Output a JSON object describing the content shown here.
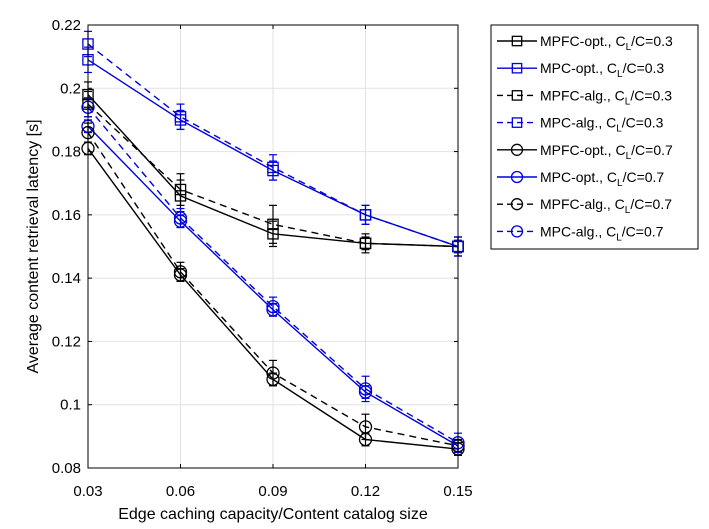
{
  "chart_data": {
    "type": "line",
    "xlabel": "Edge caching capacity/Content catalog size",
    "ylabel": "Average content retrieval latency [s]",
    "xlim": [
      0.03,
      0.15
    ],
    "ylim": [
      0.08,
      0.22
    ],
    "x_ticks": [
      "0.03",
      "0.06",
      "0.09",
      "0.12",
      "0.15"
    ],
    "y_ticks": [
      "0.08",
      "0.1",
      "0.12",
      "0.14",
      "0.16",
      "0.18",
      "0.2",
      "0.22"
    ],
    "grid": true,
    "legend_position": "outside-right-top",
    "colors": {
      "black": "#000000",
      "blue": "#0000e0",
      "grid": "#e2e2e2"
    },
    "x": [
      0.03,
      0.06,
      0.09,
      0.12,
      0.15
    ],
    "series": [
      {
        "label": "MPFC-opt., C",
        "sub": "L",
        "suffix": "/C=0.3",
        "color": "black",
        "dash": false,
        "marker": "square",
        "values": [
          0.198,
          0.166,
          0.154,
          0.151,
          0.15
        ],
        "err": [
          0.004,
          0.005,
          0.004,
          0.002,
          0.003
        ]
      },
      {
        "label": "MPC-opt., C",
        "sub": "L",
        "suffix": "/C=0.3",
        "color": "blue",
        "dash": false,
        "marker": "square",
        "values": [
          0.209,
          0.19,
          0.174,
          0.16,
          0.15
        ],
        "err": [
          0.004,
          0.003,
          0.003,
          0.003,
          0.002
        ]
      },
      {
        "label": "MPFC-alg., C",
        "sub": "L",
        "suffix": "/C=0.3",
        "color": "black",
        "dash": true,
        "marker": "square",
        "values": [
          0.195,
          0.168,
          0.157,
          0.151,
          0.15
        ],
        "err": [
          0.004,
          0.005,
          0.006,
          0.003,
          0.003
        ]
      },
      {
        "label": "MPC-alg., C",
        "sub": "L",
        "suffix": "/C=0.3",
        "color": "blue",
        "dash": true,
        "marker": "square",
        "values": [
          0.214,
          0.191,
          0.175,
          0.16,
          0.15
        ],
        "err": [
          0.004,
          0.004,
          0.004,
          0.003,
          0.003
        ]
      },
      {
        "label": "MPFC-opt., C",
        "sub": "L",
        "suffix": "/C=0.7",
        "color": "black",
        "dash": false,
        "marker": "circle",
        "values": [
          0.181,
          0.141,
          0.108,
          0.089,
          0.086
        ],
        "err": [
          0.002,
          0.002,
          0.002,
          0.002,
          0.002
        ]
      },
      {
        "label": "MPC-opt., C",
        "sub": "L",
        "suffix": "/C=0.7",
        "color": "blue",
        "dash": false,
        "marker": "circle",
        "values": [
          0.188,
          0.158,
          0.13,
          0.104,
          0.087
        ],
        "err": [
          0.002,
          0.002,
          0.002,
          0.002,
          0.002
        ]
      },
      {
        "label": "MPFC-alg., C",
        "sub": "L",
        "suffix": "/C=0.7",
        "color": "black",
        "dash": true,
        "marker": "circle",
        "values": [
          0.186,
          0.142,
          0.11,
          0.093,
          0.087
        ],
        "err": [
          0.003,
          0.003,
          0.004,
          0.004,
          0.002
        ]
      },
      {
        "label": "MPC-alg., C",
        "sub": "L",
        "suffix": "/C=0.7",
        "color": "blue",
        "dash": true,
        "marker": "circle",
        "values": [
          0.194,
          0.159,
          0.131,
          0.105,
          0.088
        ],
        "err": [
          0.003,
          0.003,
          0.003,
          0.004,
          0.003
        ]
      }
    ]
  }
}
